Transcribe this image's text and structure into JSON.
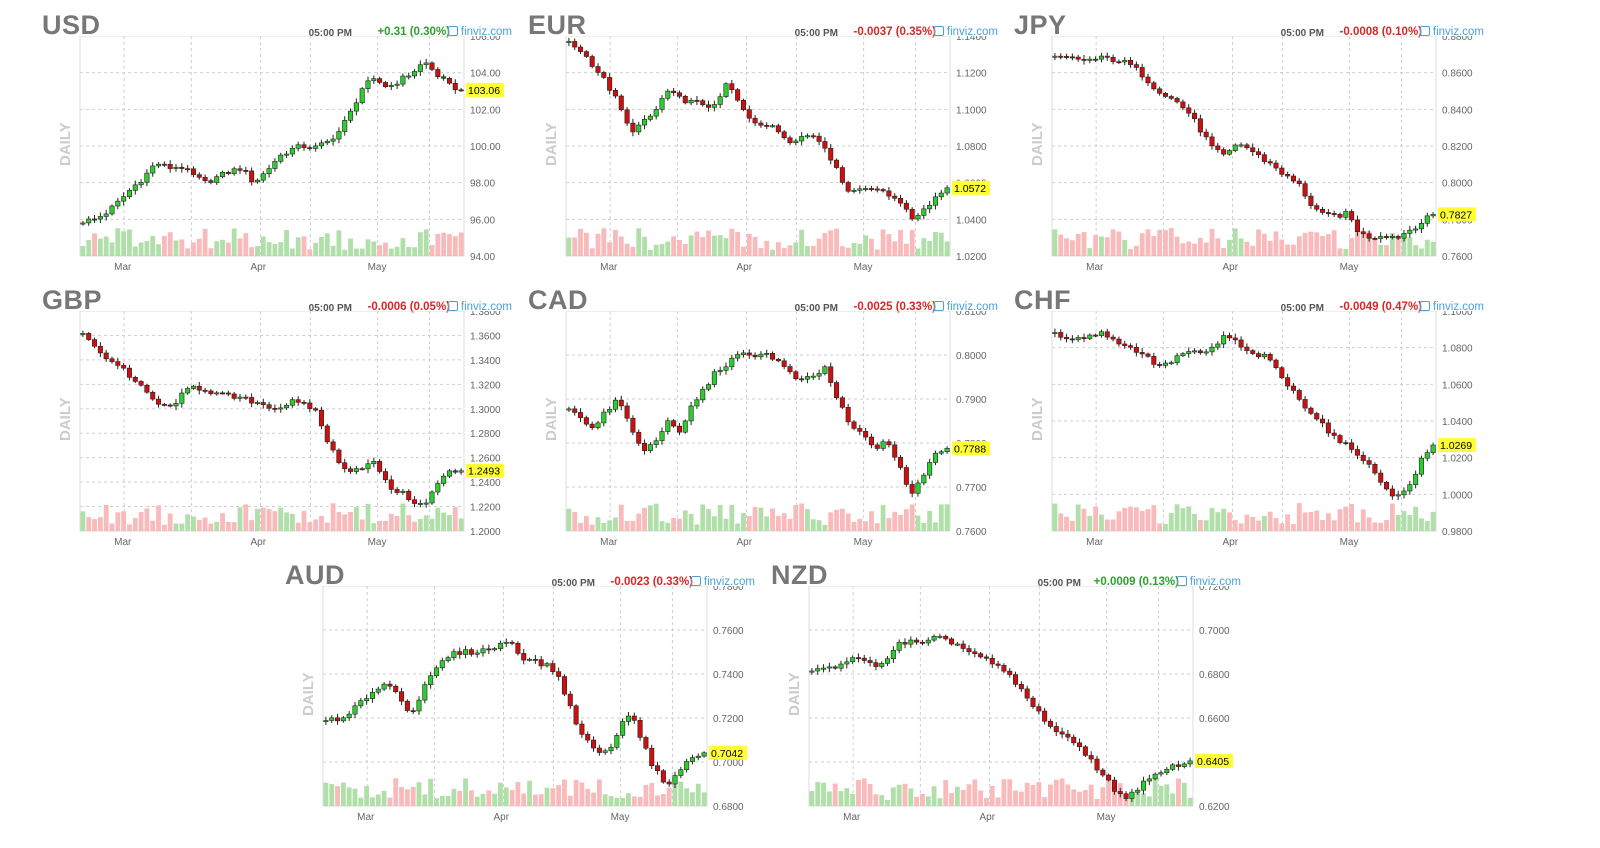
{
  "chart_data": [
    {
      "type": "candlestick",
      "title": "USD",
      "time": "05:00 PM",
      "change": "+0.31 (0.30%)",
      "direction": "up",
      "brand": "finviz.com",
      "period": "DAILY",
      "ylim": [
        94,
        106
      ],
      "yticks": [
        "106.00",
        "104.00",
        "102.00",
        "100.00",
        "98.00",
        "96.00",
        "94.00"
      ],
      "x_ticks": [
        "Mar",
        "Apr",
        "May"
      ],
      "last": "103.06",
      "last_value": 103.06,
      "series": [
        95.9,
        96.0,
        96.4,
        97.0,
        97.7,
        98.3,
        99.1,
        98.8,
        98.9,
        98.4,
        98.0,
        98.3,
        98.6,
        98.8,
        98.0,
        98.6,
        99.4,
        99.8,
        100.0,
        99.9,
        100.2,
        100.8,
        101.9,
        103.3,
        103.6,
        103.2,
        103.6,
        104.0,
        104.6,
        103.9,
        103.3,
        103.06
      ]
    },
    {
      "type": "candlestick",
      "title": "EUR",
      "time": "05:00 PM",
      "change": "-0.0037 (0.35%)",
      "direction": "down",
      "brand": "finviz.com",
      "period": "DAILY",
      "ylim": [
        1.02,
        1.14
      ],
      "yticks": [
        "1.1400",
        "1.1200",
        "1.1000",
        "1.0800",
        "1.0600",
        "1.0400",
        "1.0200"
      ],
      "x_ticks": [
        "Mar",
        "Apr",
        "May"
      ],
      "last": "1.0572",
      "last_value": 1.0572,
      "series": [
        1.136,
        1.132,
        1.124,
        1.115,
        1.104,
        1.088,
        1.092,
        1.098,
        1.11,
        1.106,
        1.104,
        1.103,
        1.101,
        1.115,
        1.102,
        1.094,
        1.092,
        1.089,
        1.083,
        1.085,
        1.086,
        1.08,
        1.066,
        1.055,
        1.057,
        1.058,
        1.053,
        1.052,
        1.04,
        1.045,
        1.052,
        1.0572
      ]
    },
    {
      "type": "candlestick",
      "title": "JPY",
      "time": "05:00 PM",
      "change": "-0.0008 (0.10%)",
      "direction": "down",
      "brand": "finviz.com",
      "period": "DAILY",
      "ylim": [
        0.76,
        0.88
      ],
      "yticks": [
        "0.8800",
        "0.8600",
        "0.8400",
        "0.8200",
        "0.8000",
        "0.7800",
        "0.7600"
      ],
      "x_ticks": [
        "Mar",
        "Apr",
        "May"
      ],
      "last": "0.7827",
      "last_value": 0.7827,
      "series": [
        0.868,
        0.868,
        0.867,
        0.867,
        0.868,
        0.867,
        0.865,
        0.86,
        0.853,
        0.848,
        0.844,
        0.838,
        0.828,
        0.818,
        0.814,
        0.822,
        0.818,
        0.813,
        0.809,
        0.803,
        0.799,
        0.788,
        0.782,
        0.782,
        0.783,
        0.772,
        0.77,
        0.772,
        0.77,
        0.774,
        0.778,
        0.7827
      ]
    },
    {
      "type": "candlestick",
      "title": "GBP",
      "time": "05:00 PM",
      "change": "-0.0006 (0.05%)",
      "direction": "down",
      "brand": "finviz.com",
      "period": "DAILY",
      "ylim": [
        1.2,
        1.38
      ],
      "yticks": [
        "1.3800",
        "1.3600",
        "1.3400",
        "1.3200",
        "1.3000",
        "1.2800",
        "1.2600",
        "1.2400",
        "1.2200",
        "1.2000"
      ],
      "x_ticks": [
        "Mar",
        "Apr",
        "May"
      ],
      "last": "1.2493",
      "last_value": 1.2493,
      "series": [
        1.36,
        1.352,
        1.34,
        1.336,
        1.325,
        1.315,
        1.305,
        1.3,
        1.31,
        1.318,
        1.316,
        1.312,
        1.31,
        1.308,
        1.306,
        1.303,
        1.3,
        1.306,
        1.303,
        1.3,
        1.275,
        1.255,
        1.25,
        1.253,
        1.256,
        1.236,
        1.232,
        1.225,
        1.22,
        1.238,
        1.248,
        1.2493
      ]
    },
    {
      "type": "candlestick",
      "title": "CAD",
      "time": "05:00 PM",
      "change": "-0.0025 (0.33%)",
      "direction": "down",
      "brand": "finviz.com",
      "period": "DAILY",
      "ylim": [
        0.76,
        0.81
      ],
      "yticks": [
        "0.8100",
        "0.8000",
        "0.7900",
        "0.7800",
        "0.7700",
        "0.7600"
      ],
      "x_ticks": [
        "Mar",
        "Apr",
        "May"
      ],
      "last": "0.7788",
      "last_value": 0.7788,
      "series": [
        0.788,
        0.786,
        0.783,
        0.787,
        0.79,
        0.784,
        0.778,
        0.78,
        0.785,
        0.782,
        0.788,
        0.792,
        0.796,
        0.798,
        0.8,
        0.8,
        0.8005,
        0.799,
        0.796,
        0.794,
        0.795,
        0.797,
        0.79,
        0.784,
        0.782,
        0.779,
        0.78,
        0.776,
        0.768,
        0.772,
        0.778,
        0.7788
      ]
    },
    {
      "type": "candlestick",
      "title": "CHF",
      "time": "05:00 PM",
      "change": "-0.0049 (0.47%)",
      "direction": "down",
      "brand": "finviz.com",
      "period": "DAILY",
      "ylim": [
        0.98,
        1.1
      ],
      "yticks": [
        "1.1000",
        "1.0800",
        "1.0600",
        "1.0400",
        "1.0200",
        "1.0000",
        "0.9800"
      ],
      "x_ticks": [
        "Mar",
        "Apr",
        "May"
      ],
      "last": "1.0269",
      "last_value": 1.0269,
      "series": [
        1.087,
        1.086,
        1.085,
        1.087,
        1.088,
        1.084,
        1.08,
        1.078,
        1.072,
        1.07,
        1.075,
        1.078,
        1.076,
        1.08,
        1.087,
        1.082,
        1.076,
        1.076,
        1.07,
        1.06,
        1.052,
        1.045,
        1.038,
        1.03,
        1.026,
        1.022,
        1.013,
        1.005,
        0.998,
        1.004,
        1.018,
        1.0269
      ]
    },
    {
      "type": "candlestick",
      "title": "AUD",
      "time": "05:00 PM",
      "change": "-0.0023 (0.33%)",
      "direction": "down",
      "brand": "finviz.com",
      "period": "DAILY",
      "ylim": [
        0.68,
        0.78
      ],
      "yticks": [
        "0.7800",
        "0.7600",
        "0.7400",
        "0.7200",
        "0.7000",
        "0.6800"
      ],
      "x_ticks": [
        "Mar",
        "Apr",
        "May"
      ],
      "last": "0.7042",
      "last_value": 0.7042,
      "series": [
        0.72,
        0.718,
        0.722,
        0.728,
        0.733,
        0.736,
        0.73,
        0.722,
        0.733,
        0.742,
        0.748,
        0.75,
        0.75,
        0.751,
        0.752,
        0.756,
        0.748,
        0.746,
        0.744,
        0.74,
        0.725,
        0.712,
        0.706,
        0.704,
        0.714,
        0.724,
        0.708,
        0.696,
        0.69,
        0.696,
        0.702,
        0.7042
      ]
    },
    {
      "type": "candlestick",
      "title": "NZD",
      "time": "05:00 PM",
      "change": "+0.0009 (0.13%)",
      "direction": "up",
      "brand": "finviz.com",
      "period": "DAILY",
      "ylim": [
        0.62,
        0.72
      ],
      "yticks": [
        "0.7200",
        "0.7000",
        "0.6800",
        "0.6600",
        "0.6400",
        "0.6200"
      ],
      "x_ticks": [
        "Mar",
        "Apr",
        "May"
      ],
      "last": "0.6405",
      "last_value": 0.6405,
      "series": [
        0.681,
        0.682,
        0.684,
        0.687,
        0.686,
        0.684,
        0.686,
        0.693,
        0.695,
        0.693,
        0.696,
        0.696,
        0.693,
        0.69,
        0.687,
        0.684,
        0.68,
        0.674,
        0.666,
        0.66,
        0.654,
        0.65,
        0.647,
        0.64,
        0.633,
        0.626,
        0.624,
        0.63,
        0.633,
        0.636,
        0.639,
        0.6405
      ]
    }
  ]
}
